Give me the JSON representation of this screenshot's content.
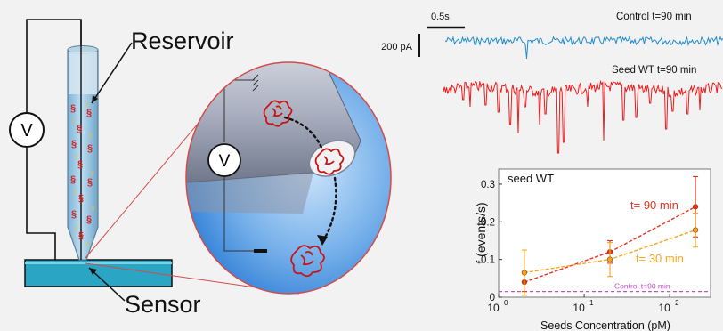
{
  "labels": {
    "reservoir": "Reservoir",
    "sensor": "Sensor",
    "voltmeter_left": "V",
    "voltmeter_zoom": "V"
  },
  "traces": {
    "time_scale": "0.5s",
    "current_scale": "200 pA",
    "control_label": "Control t=90 min",
    "seed_label": "Seed WT t=90 min",
    "colors": {
      "control": "#1f8ccc",
      "seed": "#ee1c1c"
    }
  },
  "chart_data": {
    "type": "scatter",
    "title": "seed WT",
    "xlabel": "Seeds Concentration (pM)",
    "ylabel": "f (events/s)",
    "xscale": "log",
    "xlim": [
      1,
      300
    ],
    "ylim": [
      0,
      0.34
    ],
    "xticks": [
      1,
      10,
      100
    ],
    "xtick_labels": [
      "10",
      "10",
      "10"
    ],
    "xtick_exponents": [
      "0",
      "1",
      "2"
    ],
    "yticks": [
      0,
      0.1,
      0.2,
      0.3
    ],
    "ytick_labels": [
      "0",
      "0.1",
      "0.2",
      "0.3"
    ],
    "series": [
      {
        "name": "t= 90 min",
        "color": "#e8321e",
        "x": [
          2,
          20,
          200
        ],
        "y": [
          0.04,
          0.12,
          0.24
        ],
        "err": [
          0.025,
          0.03,
          0.08
        ]
      },
      {
        "name": "t= 30 min",
        "color": "#f5a623",
        "x": [
          2,
          20,
          200
        ],
        "y": [
          0.065,
          0.1,
          0.178
        ],
        "err": [
          0.06,
          0.045,
          0.045
        ]
      }
    ],
    "reference_line": {
      "label": "Control t=90 min",
      "y": 0.015,
      "color": "#c055c8"
    }
  }
}
